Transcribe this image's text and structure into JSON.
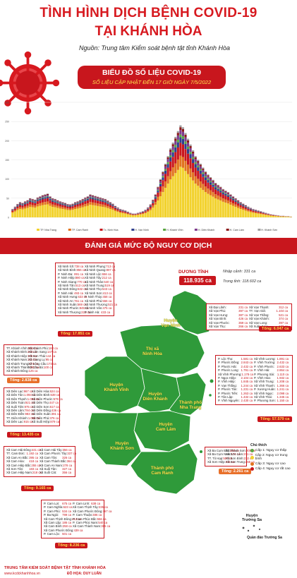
{
  "header": {
    "title_line1": "TÌNH HÌNH DỊCH BỆNH COVID-19",
    "title_line2": "TẠI KHÁNH HÒA",
    "source": "Nguồn: Trung tâm Kiểm soát bệnh tật tỉnh Khánh Hòa"
  },
  "chart_banner": {
    "title": "BIỂU ĐỒ SỐ LIỆU COVID-19",
    "subtitle": "SỐ LIỆU CẬP NHẬT ĐẾN 17 GIỜ NGÀY 7/5/2022"
  },
  "chart_data": {
    "type": "bar",
    "stacked": true,
    "ylim": [
      0,
      300
    ],
    "yticks": [
      0,
      50,
      100,
      150,
      200,
      250,
      300
    ],
    "legend_placement": "bottom",
    "series": [
      {
        "name": "TP. Nha Trang",
        "color": "#f2d22e"
      },
      {
        "name": "TP. Cam Ranh",
        "color": "#e1731e"
      },
      {
        "name": "Tx. Ninh Hòa",
        "color": "#c8161d"
      },
      {
        "name": "H. Vạn Ninh",
        "color": "#2e3f8f"
      },
      {
        "name": "H. Khánh Vĩnh",
        "color": "#5aa642"
      },
      {
        "name": "H. Diên Khánh",
        "color": "#7f3c8d"
      },
      {
        "name": "H. Cam Lâm",
        "color": "#8b1a1a"
      },
      {
        "name": "H. Khánh Sơn",
        "color": "#a0a0a0"
      }
    ],
    "totals": [
      22,
      28,
      35,
      40,
      38,
      42,
      45,
      50,
      48,
      46,
      52,
      55,
      58,
      60,
      62,
      55,
      50,
      48,
      45,
      42,
      40,
      38,
      35,
      34,
      36,
      40,
      42,
      45,
      48,
      52,
      55,
      60,
      58,
      56,
      54,
      52,
      50,
      48,
      44,
      40,
      36,
      30,
      26,
      22,
      20,
      18,
      15,
      12,
      10,
      10,
      12,
      14,
      16,
      20,
      26,
      34,
      46,
      60,
      80,
      100,
      120,
      140,
      160,
      180,
      195,
      210,
      225,
      240,
      235,
      220,
      205,
      190,
      175,
      160,
      150,
      140,
      130,
      120,
      112,
      105,
      98,
      90,
      85,
      80,
      74,
      70,
      66,
      60,
      55,
      50,
      45,
      40,
      36,
      32,
      28,
      25,
      22,
      20,
      18,
      16,
      14,
      12,
      10,
      8,
      7,
      6,
      5,
      4,
      4,
      3,
      3,
      2
    ]
  },
  "section": {
    "title": "ĐÁNH GIÁ MỨC ĐỘ NGUY CƠ DỊCH"
  },
  "summary": {
    "label": "DƯƠNG TÍNH",
    "value": "118.935 ca",
    "imported": "Nhập cảnh: 331 ca",
    "domestic": "Trong tỉnh: 118.602 ca"
  },
  "map": {
    "places": {
      "van_ninh": "Huyện\nVạn Ninh",
      "ninh_hoa": "Thị xã\nNinh Hòa",
      "khanh_vinh": "Huyện\nKhánh Vĩnh",
      "dien_khanh": "Huyện\nDiên Khánh",
      "nha_trang": "Thành phố\nNha Trang",
      "cam_lam": "Huyện\nCam Lâm",
      "khanh_son": "Huyện\nKhánh Sơn",
      "cam_ranh": "Thành phố\nCam Ranh",
      "truong_sa_name": "Huyện\nTrường Sa",
      "truong_sa_islands": "Quần đảo Trường Sa"
    },
    "colors": {
      "land": "#2f9a3a",
      "border": "#ffffff",
      "sea": "#ffffff"
    }
  },
  "legend": {
    "title": "Chú thích",
    "items": [
      {
        "label": "Cấp 1: Nguy cơ thấp",
        "color": "#5aa642"
      },
      {
        "label": "Cấp 2: Nguy cơ trung bình",
        "color": "#f2d22e"
      },
      {
        "label": "Cấp 3: Nguy cơ cao",
        "color": "#e1731e"
      },
      {
        "label": "Cấp 4: Nguy cơ rất cao",
        "color": "#c8161d"
      }
    ]
  },
  "districts": {
    "ninh_hoa": {
      "rows": [
        [
          "Xã Ninh Ích:",
          "738 ca",
          "Xã Ninh Phụng:",
          "713 ca"
        ],
        [
          "Xã Ninh Bình:",
          "856 ca",
          "Xã Ninh Quang:",
          "807 ca"
        ],
        [
          "P. Ninh Đa:",
          "891 ca",
          "Xã Ninh Lộc:",
          "656 ca"
        ],
        [
          "P. Ninh Hiệp:",
          "880 ca",
          "Xã Ninh Tây:",
          "212 ca"
        ],
        [
          "P. Ninh Giang:",
          "770 ca",
          "Xã Ninh Thân:",
          "640 ca"
        ],
        [
          "Xã Ninh Tân:",
          "513 ca",
          "Xã Ninh Trung:",
          "519 ca"
        ],
        [
          "Xã Ninh Đông:",
          "632 ca",
          "Xã Ninh Thọ:",
          "543 ca"
        ],
        [
          "P. Ninh Hải:",
          "493 ca",
          "Xã Ninh Sơn:",
          "413 ca"
        ],
        [
          "Xã Ninh Hưng:",
          "633 ca",
          "P. Ninh Thủy:",
          "458 ca"
        ],
        [
          "Xã Ninh An:",
          "761 ca",
          "Xã Ninh Phú:",
          "556 ca"
        ],
        [
          "Xã Ninh Xuân:",
          "569 ca",
          "Xã Ninh Thượng:",
          "521 ca"
        ],
        [
          "Xã Ninh Phước:",
          "845 ca",
          "Xã Ninh Vân:",
          "475 ca"
        ],
        [
          "Xã Ninh Thượng:",
          "222 ca",
          "P. Ninh Hà:",
          "433 ca"
        ]
      ],
      "total": "Tổng: 17.851 ca"
    },
    "van_ninh": {
      "rows": [
        [
          "Xã Đại Lãnh:",
          "231 ca",
          "Xã Vạn Thạnh:",
          "312 ca"
        ],
        [
          "Xã Vạn Phú:",
          "397 ca",
          "TT. Vạn Giã:",
          "1.104 ca"
        ],
        [
          "Xã Vạn Hưng:",
          "387 ca",
          "Xã Vạn Thắng:",
          "521 ca"
        ],
        [
          "Xã Vạn Bình:",
          "426 ca",
          "Xã Vạn Khánh:",
          "374 ca"
        ],
        [
          "Xã Vạn Phước:",
          "359 ca",
          "Xã Vạn Long:",
          "397 ca"
        ],
        [
          "Xã Vạn Thọ:",
          "266 ca",
          "Xã Xuân Sơn:",
          "173 ca"
        ]
      ],
      "total": "Tổng: 6.047 ca"
    },
    "khanh_vinh": {
      "rows": [
        [
          "TT. Khánh Vĩnh:",
          "651 ca",
          "Xã Khánh Phú:",
          "180 ca"
        ],
        [
          "Xã Khánh Bình:",
          "204 ca",
          "Xã Liên Sang:",
          "147 ca"
        ],
        [
          "Xã Khánh Hiệp:",
          "176 ca",
          "Xã Sơn Thái:",
          "144 ca"
        ],
        [
          "Xã Khánh Nam:",
          "211 ca",
          "Xã Giang Ly:",
          "95 ca"
        ],
        [
          "Xã Khánh Trung:",
          "174 ca",
          "Xã Sông Cầu:",
          "173 ca"
        ],
        [
          "Xã Khánh Thành:",
          "252 ca",
          "Xã Cầu Bà:",
          "100 ca"
        ],
        [
          "Xã Khánh Đông:",
          "125 ca",
          "",
          ""
        ]
      ],
      "total": "Tổng: 2.838 ca"
    },
    "dien_khanh": {
      "rows": [
        [
          "Xã Diên Lạc:",
          "967 ca",
          "Xã Diên Hòa:",
          "624 ca"
        ],
        [
          "Xã Diên Tân:",
          "1.093 ca",
          "Xã Diên Bình:",
          "639 ca"
        ],
        [
          "Xã Diên Thạnh:",
          "1.084 ca",
          "Xã Diên Phước:",
          "579 ca"
        ],
        [
          "Xã Diên Toàn:",
          "921 ca",
          "Xã Diên Thọ:",
          "447 ca"
        ],
        [
          "Xã Suối Tiên:",
          "975 ca",
          "Xã Diên Sơn:",
          "617 ca"
        ],
        [
          "Xã Diên Lâm:",
          "784 ca",
          "Xã Diên Đồng:",
          "436 ca"
        ],
        [
          "Xã Diên Điền:",
          "983 ca",
          "Xã Diên Xuân:",
          "391 ca"
        ],
        [
          "TT. Diên Khánh:",
          "1.036 ca",
          "Xã Diên Phú:",
          "376 ca"
        ],
        [
          "Xã Diên Lạc:",
          "915 ca",
          "Xã Suối Hiệp:",
          "879 ca"
        ]
      ],
      "total": "Tổng: 13.435 ca"
    },
    "nha_trang": {
      "rows": [
        [
          "P. Lộc Thọ:",
          "1.581 ca",
          "Xã Vĩnh Lương:",
          "1.891 ca"
        ],
        [
          "P. Phước Đồng:",
          "2.843 ca",
          "P. Vĩnh Trường:",
          "2.432 ca"
        ],
        [
          "P. Phước Hải:",
          "2.432 ca",
          "P. Vĩnh Phước:",
          "2.633 ca"
        ],
        [
          "P. Phước Long:",
          "1.791 ca",
          "P. Vĩnh Hải:",
          "2.864 ca"
        ],
        [
          "Xã Vĩnh Phương:",
          "1.178 ca",
          "P. Phương Sài:",
          "1.110 ca"
        ],
        [
          "P. Ngọc Hiệp:",
          "2.104 ca",
          "P. Vĩnh Hòa:",
          "1.932 ca"
        ],
        [
          "P. Vĩnh Hiệp:",
          "1.845 ca",
          "Xã Vĩnh Trung:",
          "1.208 ca"
        ],
        [
          "P. Vạn Thắng:",
          "1.244 ca",
          "Xã Vĩnh Thạnh:",
          "1.366 ca"
        ],
        [
          "P. Phước Tân:",
          "1.231 ca",
          "P. Xương Huân:",
          "1.241 ca"
        ],
        [
          "P. Phước Tiến:",
          "1.263 ca",
          "Xã Vĩnh Ngọc:",
          "2.098 ca"
        ],
        [
          "P. Tân Lập:",
          "1.432 ca",
          "Xã Vĩnh Thái:",
          "1.345 ca"
        ],
        [
          "P. Vĩnh Nguyên:",
          "2.430 ca",
          "P. Phương Sơn:",
          "1.150 ca"
        ]
      ],
      "total": "Tổng: 57.579 ca"
    },
    "cam_lam": {
      "rows": [
        [
          "Xã Cam Hải Đông:",
          "441 ca",
          "Xã Cam Hải Tây:",
          "356 ca"
        ],
        [
          "TT. Cam Đức:",
          "1.192 ca",
          "Xã Cam Phước Tây:",
          "337 ca"
        ],
        [
          "Xã Cam An Bắc:",
          "395 ca",
          "Xã Cam Tân:",
          "326 ca"
        ],
        [
          "Xã Cam Hòa:",
          "418 ca",
          "Xã Cam Thành Bắc:",
          "364 ca"
        ],
        [
          "Xã Cam Hiệp Bắc:",
          "255 ca",
          "Xã Cam An Nam:",
          "278 ca"
        ],
        [
          "Xã Sơn Tân:",
          "183 ca",
          "Xã Suối Tân:",
          "327 ca"
        ],
        [
          "Xã Cam Hiệp Nam:",
          "218 ca",
          "Xã Suối Cát:",
          "356 ca"
        ]
      ],
      "total": "Tổng: 9.165 ca"
    },
    "khanh_son": {
      "rows": [
        [
          "Xã Ba Cụm Bắc:",
          "189 ca",
          "Xã Thành Sơn:",
          "205 ca"
        ],
        [
          "Xã Ba Cụm Nam:",
          "174 ca",
          "Xã Sơn Lâm:",
          "271 ca"
        ],
        [
          "TT. Tô Hạp:",
          "557 ca",
          "Xã Sơn Bình:",
          "232 ca"
        ],
        [
          "Xã Sơn Hiệp:",
          "411 ca",
          "Xã Sơn Trung:",
          "255 ca"
        ]
      ],
      "total": "Tổng: 2.261 ca"
    },
    "cam_ranh": {
      "rows": [
        [
          "P. Cam Lợi:",
          "675 ca",
          "P. Cam Linh:",
          "638 ca"
        ],
        [
          "P. Cam Nghĩa:",
          "623 ca",
          "Xã Cam Thịnh Tây:",
          "235 ca"
        ],
        [
          "P. Cam Phú:",
          "534 ca",
          "Xã Cam Phước Đông:",
          "467 ca"
        ],
        [
          "P. Ba Ngòi:",
          "799 ca",
          "P. Cam Thuận:",
          "486 ca"
        ],
        [
          "Xã Cam Thịnh Đông:",
          "412 ca",
          "P. Cam Phúc Bắc:",
          "556 ca"
        ],
        [
          "Xã Cam Lập:",
          "186 ca",
          "P. Cam Phúc Nam:",
          "540 ca"
        ],
        [
          "Xã Cam Bình:",
          "258 ca",
          "Xã Cam Thành Nam:",
          "385 ca"
        ],
        [
          "Xã Cam Phước Đông:",
          "439 ca",
          "",
          ""
        ],
        [
          "P. Cam Lộc:",
          "501 ca",
          "",
          ""
        ]
      ],
      "total": "Tổng: 8.236 ca"
    }
  },
  "footer": {
    "org": "TRUNG TÂM KIỂM SOÁT BỆNH TẬT TỈNH KHÁNH HÒA",
    "website": "www.kcdckhanhhoa.vn",
    "design": "ĐỒ HỌA: DUY LUÂN"
  }
}
